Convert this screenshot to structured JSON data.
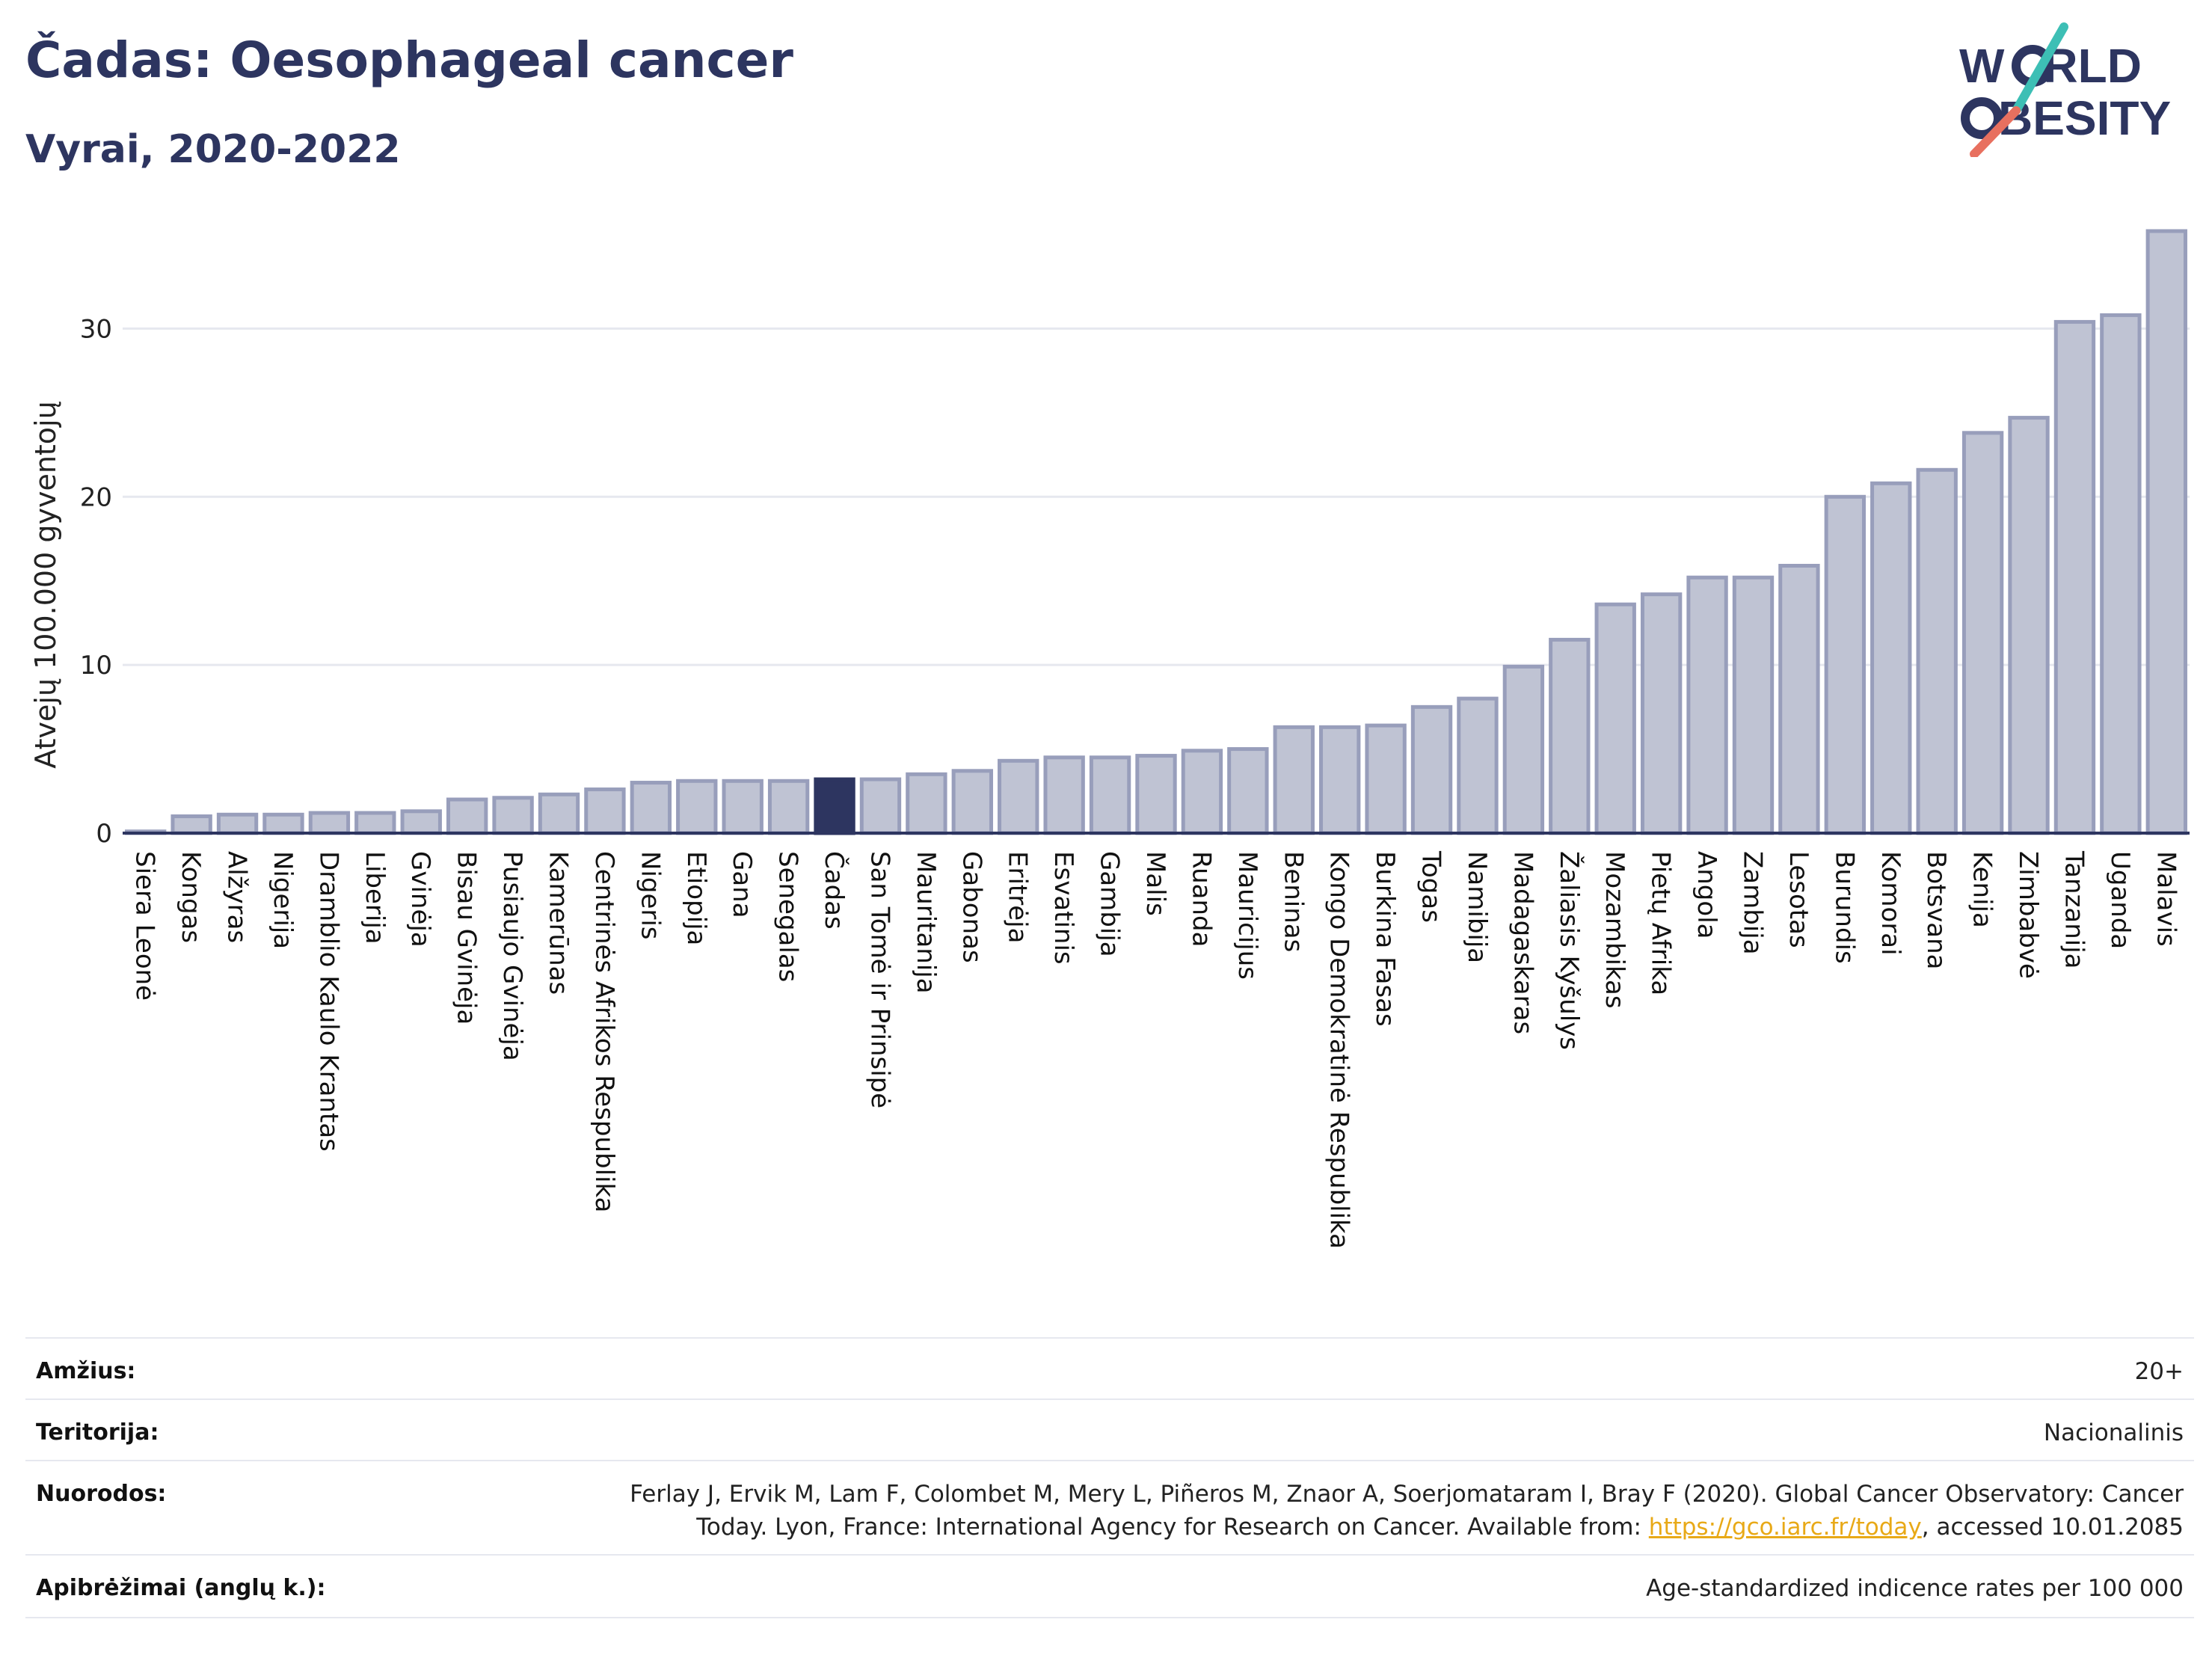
{
  "title": "Čadas: Oesophageal cancer",
  "subtitle": "Vyrai, 2020-2022",
  "logo": {
    "line1_a": "W",
    "line1_b": "RLD",
    "line2_b": "BESITY"
  },
  "colors": {
    "bar": "#bfc3d3",
    "bar_border": "#989ebb",
    "highlight": "#2d3560",
    "grid": "#e6e8ef",
    "axis": "#2d3560"
  },
  "chart_data": {
    "type": "bar",
    "ylabel": "Atvejų 100.000 gyventojų",
    "ylim": [
      0,
      37
    ],
    "yticks": [
      0,
      10,
      20,
      30
    ],
    "highlight": "Čadas",
    "categories": [
      "Siera Leonė",
      "Kongas",
      "Alžyras",
      "Nigerija",
      "Dramblio Kaulo Krantas",
      "Liberija",
      "Gvinėja",
      "Bisau Gvinėja",
      "Pusiaujo Gvinėja",
      "Kamerūnas",
      "Centrinės Afrikos Respublika",
      "Nigeris",
      "Etiopija",
      "Gana",
      "Senegalas",
      "Čadas",
      "San Tomė ir Prinsipė",
      "Mauritanija",
      "Gabonas",
      "Eritrėja",
      "Esvatinis",
      "Gambija",
      "Malis",
      "Ruanda",
      "Mauricijus",
      "Beninas",
      "Kongo Demokratinė Respublika",
      "Burkina Fasas",
      "Togas",
      "Namibija",
      "Madagaskaras",
      "Žaliasis Kyšulys",
      "Mozambikas",
      "Pietų Afrika",
      "Angola",
      "Zambija",
      "Lesotas",
      "Burundis",
      "Komorai",
      "Botsvana",
      "Kenija",
      "Zimbabvė",
      "Tanzanija",
      "Uganda",
      "Malavis"
    ],
    "values": [
      0.1,
      1.0,
      1.1,
      1.1,
      1.2,
      1.2,
      1.3,
      2.0,
      2.1,
      2.3,
      2.6,
      3.0,
      3.1,
      3.1,
      3.1,
      3.2,
      3.2,
      3.5,
      3.7,
      4.3,
      4.5,
      4.5,
      4.6,
      4.9,
      5.0,
      6.3,
      6.3,
      6.4,
      7.5,
      8.0,
      9.9,
      11.5,
      13.6,
      14.2,
      15.2,
      15.2,
      15.9,
      20.0,
      20.8,
      21.6,
      23.8,
      24.7,
      30.4,
      30.8,
      35.8
    ]
  },
  "info": [
    {
      "label": "Amžius:",
      "value": "20+"
    },
    {
      "label": "Teritorija:",
      "value": "Nacionalinis"
    },
    {
      "label": "Nuorodos:",
      "value_line1": "Ferlay J, Ervik M, Lam F, Colombet M, Mery L, Piñeros M, Znaor A, Soerjomataram I, Bray F (2020). Global Cancer Observatory: Cancer",
      "value_line2_pre": "Today. Lyon, France: International Agency for Research on Cancer. Available from: ",
      "link": "https://gco.iarc.fr/today",
      "value_line2_post": ", accessed 10.01.2085"
    },
    {
      "label": "Apibrėžimai (anglų k.):",
      "value": "Age-standardized indicence rates per 100 000"
    }
  ]
}
